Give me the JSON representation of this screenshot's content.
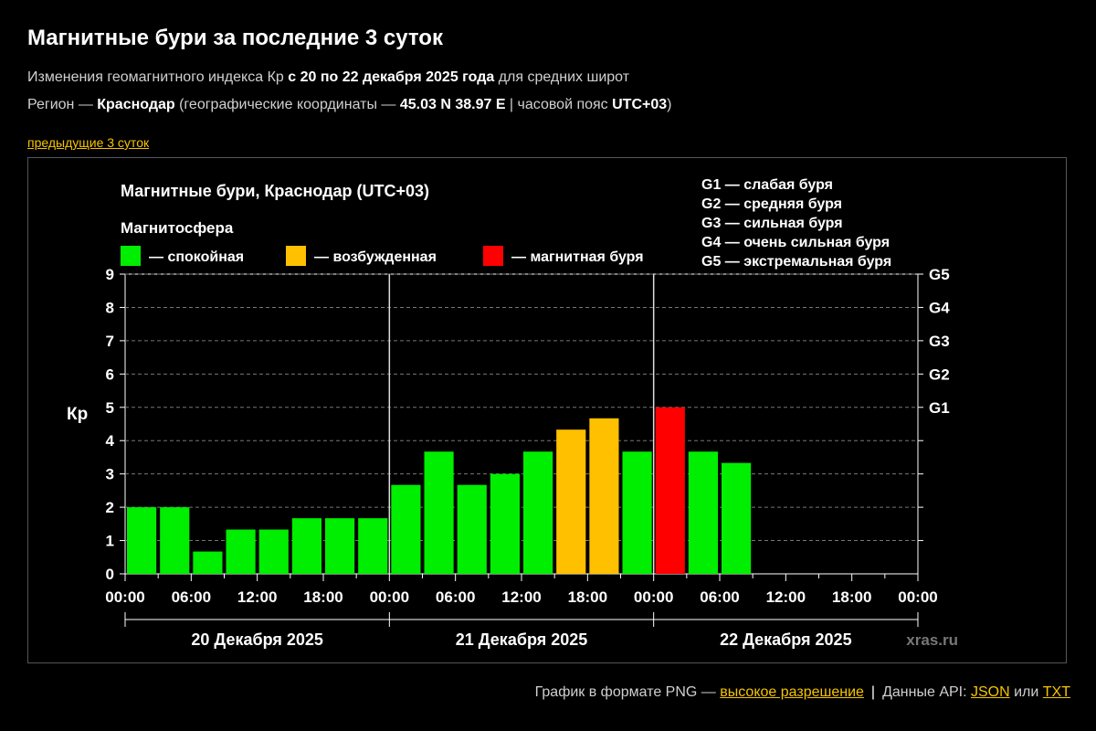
{
  "header": {
    "title": "Магнитные бури за последние 3 суток",
    "line1": {
      "prefix": "Изменения геомагнитного индекса Кр ",
      "bold": "с 20 по 22 декабря 2025 года",
      "suffix": " для средних широт"
    },
    "line2": {
      "region_label": "Регион — ",
      "region": "Краснодар",
      "coords_label": " (географические координаты — ",
      "coords": "45.03 N 38.97 E",
      "tz_label": " | часовой пояс ",
      "tz": "UTC+03",
      "close": ")"
    },
    "prev_link": "предыдущие 3 суток"
  },
  "colors": {
    "calm": "#00ee00",
    "excited": "#ffc000",
    "storm": "#ff0000",
    "background": "#000000",
    "link": "#f5c400"
  },
  "chart_data": {
    "type": "bar",
    "title": "Магнитные бури, Краснодар (UTC+03)",
    "legend_title": "Магнитосфера",
    "legend": [
      {
        "label": "— спокойная",
        "status": "calm"
      },
      {
        "label": "— возбужденная",
        "status": "excited"
      },
      {
        "label": "— магнитная буря",
        "status": "storm"
      }
    ],
    "g_scale": [
      "G1 — слабая буря",
      "G2 — средняя буря",
      "G3 — сильная буря",
      "G4 — очень сильная буря",
      "G5 — экстремальная буря"
    ],
    "ylabel": "Кр",
    "ylim": [
      0,
      9
    ],
    "y_ticks": [
      0,
      1,
      2,
      3,
      4,
      5,
      6,
      7,
      8,
      9
    ],
    "g_ticks": [
      {
        "label": "G1",
        "value": 5
      },
      {
        "label": "G2",
        "value": 6
      },
      {
        "label": "G3",
        "value": 7
      },
      {
        "label": "G4",
        "value": 8
      },
      {
        "label": "G5",
        "value": 9
      }
    ],
    "slots_per_day": 8,
    "days": [
      "20 Декабря 2025",
      "21 Декабря 2025",
      "22 Декабря 2025"
    ],
    "x_tick_labels": [
      "00:00",
      "06:00",
      "12:00",
      "18:00",
      "00:00",
      "06:00",
      "12:00",
      "18:00",
      "00:00",
      "06:00",
      "12:00",
      "18:00",
      "00:00"
    ],
    "values": [
      2.0,
      2.0,
      0.67,
      1.33,
      1.33,
      1.67,
      1.67,
      1.67,
      2.67,
      3.67,
      2.67,
      3.0,
      3.67,
      4.33,
      4.67,
      3.67,
      5.0,
      3.67,
      3.33
    ],
    "status": [
      "calm",
      "calm",
      "calm",
      "calm",
      "calm",
      "calm",
      "calm",
      "calm",
      "calm",
      "calm",
      "calm",
      "calm",
      "calm",
      "excited",
      "excited",
      "calm",
      "storm",
      "calm",
      "calm"
    ],
    "watermark": "xras.ru",
    "grid": true
  },
  "footer": {
    "png_label": "График в формате PNG — ",
    "png_link": "высокое разрешение",
    "sep": "|",
    "api_label": "Данные API: ",
    "json_link": "JSON",
    "or": " или ",
    "txt_link": "TXT"
  }
}
